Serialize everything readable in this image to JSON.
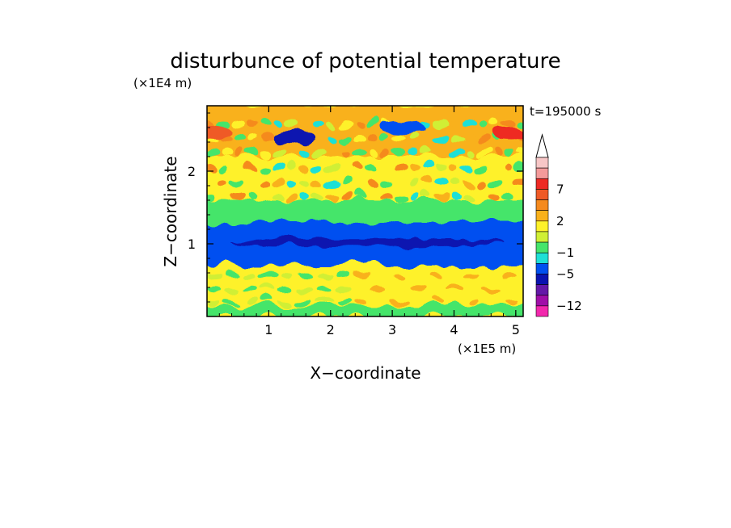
{
  "chart_data": {
    "type": "heatmap",
    "title": "disturbunce of potential temperature",
    "xlabel": "X−coordinate",
    "ylabel": "Z−coordinate",
    "x_scale_label": "(×1E5 m)",
    "y_scale_label": "(×1E4 m)",
    "time_label": "t=195000 s",
    "xlim": [
      0,
      5.12
    ],
    "ylim": [
      0,
      2.9
    ],
    "x_ticks": [
      "1",
      "2",
      "3",
      "4",
      "5"
    ],
    "y_ticks": [
      "1",
      "2"
    ],
    "colorbar": {
      "tick_labels": [
        "7",
        "2",
        "−1",
        "−5",
        "−12"
      ],
      "levels_high_to_low": [
        9,
        8,
        7,
        6,
        4,
        2,
        1,
        0,
        -1,
        -3,
        -5,
        -7,
        -9,
        -12
      ],
      "colors_high_to_low": [
        "#f7c6c6",
        "#f49a9a",
        "#ee2a24",
        "#ef5a26",
        "#f58a1e",
        "#f9b11b",
        "#fef12a",
        "#d0ef35",
        "#45e56b",
        "#1ee0d6",
        "#0050f0",
        "#0a13b0",
        "#6418a8",
        "#a00ea8",
        "#f227ad"
      ],
      "extend": "max"
    },
    "field_bands": [
      {
        "z_range": [
          0.0,
          0.15
        ],
        "dominant": "#45e56b"
      },
      {
        "z_range": [
          0.15,
          0.7
        ],
        "dominant": "#fef12a"
      },
      {
        "z_range": [
          0.7,
          1.3
        ],
        "dominant": "#0050f0"
      },
      {
        "z_range": [
          1.3,
          1.6
        ],
        "dominant": "#45e56b"
      },
      {
        "z_range": [
          1.6,
          2.2
        ],
        "dominant": "#fef12a"
      },
      {
        "z_range": [
          2.2,
          2.9
        ],
        "dominant": "#f9b11b"
      }
    ],
    "features": [
      {
        "kind": "min",
        "x": 1.4,
        "z": 2.45,
        "color": "#0a13b0"
      },
      {
        "kind": "min",
        "x": 3.2,
        "z": 2.6,
        "color": "#0050f0"
      },
      {
        "kind": "max",
        "x": 0.1,
        "z": 2.55,
        "color": "#ef5a26"
      },
      {
        "kind": "max",
        "x": 4.9,
        "z": 2.5,
        "color": "#ee2a24"
      }
    ]
  }
}
